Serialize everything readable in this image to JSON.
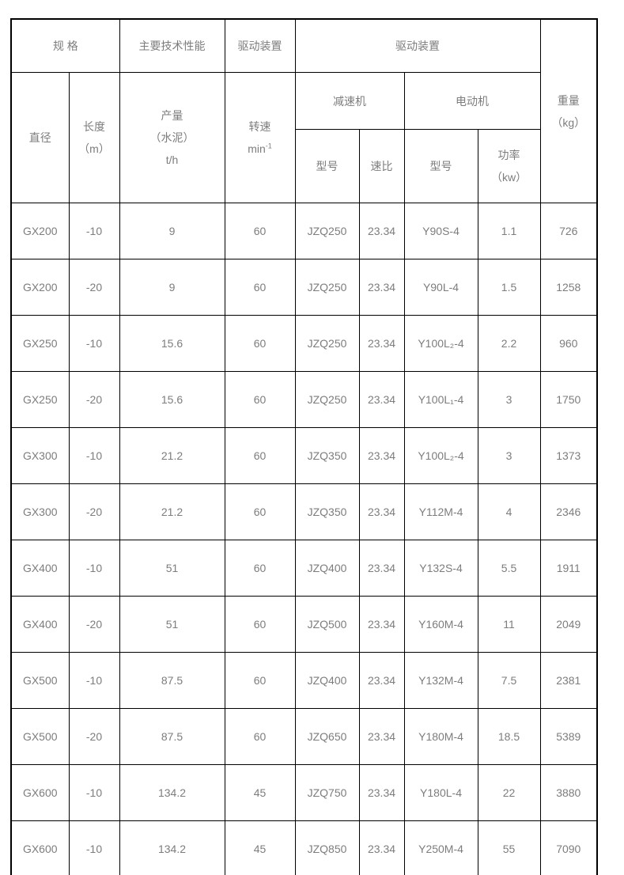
{
  "page": {
    "background_color": "#ffffff"
  },
  "table": {
    "border_color": "#000000",
    "text_color": "#7d7d7d",
    "header": {
      "spec_group": "规 格",
      "performance_group": "主要技术性能",
      "drive_group_speed": "驱动装置",
      "drive_group": "驱动装置",
      "weight": {
        "line1": "重量",
        "line2": "（kg）"
      },
      "diameter": "直径",
      "length": {
        "line1": "长度",
        "line2": "（m）"
      },
      "output": {
        "line1": "产量",
        "line2": "（水泥）",
        "line3": "t/h"
      },
      "speed": {
        "line1": "转速",
        "unit_base": "min",
        "unit_sup": "-1"
      },
      "reducer_group": "减速机",
      "motor_group": "电动机",
      "reducer_model": "型号",
      "speed_ratio": "速比",
      "motor_model": "型号",
      "power": {
        "line1": "功率",
        "line2": "（kw）"
      }
    },
    "rows": [
      [
        "GX200",
        "-10",
        "9",
        "60",
        "JZQ250",
        "23.34",
        "Y90S-4",
        "1.1",
        "726"
      ],
      [
        "GX200",
        "-20",
        "9",
        "60",
        "JZQ250",
        "23.34",
        "Y90L-4",
        "1.5",
        "1258"
      ],
      [
        "GX250",
        "-10",
        "15.6",
        "60",
        "JZQ250",
        "23.34",
        "Y100L₂-4",
        "2.2",
        "960"
      ],
      [
        "GX250",
        "-20",
        "15.6",
        "60",
        "JZQ250",
        "23.34",
        "Y100L₁-4",
        "3",
        "1750"
      ],
      [
        "GX300",
        "-10",
        "21.2",
        "60",
        "JZQ350",
        "23.34",
        "Y100L₂-4",
        "3",
        "1373"
      ],
      [
        "GX300",
        "-20",
        "21.2",
        "60",
        "JZQ350",
        "23.34",
        "Y112M-4",
        "4",
        "2346"
      ],
      [
        "GX400",
        "-10",
        "51",
        "60",
        "JZQ400",
        "23.34",
        "Y132S-4",
        "5.5",
        "1911"
      ],
      [
        "GX400",
        "-20",
        "51",
        "60",
        "JZQ500",
        "23.34",
        "Y160M-4",
        "11",
        "2049"
      ],
      [
        "GX500",
        "-10",
        "87.5",
        "60",
        "JZQ400",
        "23.34",
        "Y132M-4",
        "7.5",
        "2381"
      ],
      [
        "GX500",
        "-20",
        "87.5",
        "60",
        "JZQ650",
        "23.34",
        "Y180M-4",
        "18.5",
        "5389"
      ],
      [
        "GX600",
        "-10",
        "134.2",
        "45",
        "JZQ750",
        "23.34",
        "Y180L-4",
        "22",
        "3880"
      ],
      [
        "GX600",
        "-10",
        "134.2",
        "45",
        "JZQ850",
        "23.34",
        "Y250M-4",
        "55",
        "7090"
      ]
    ]
  }
}
